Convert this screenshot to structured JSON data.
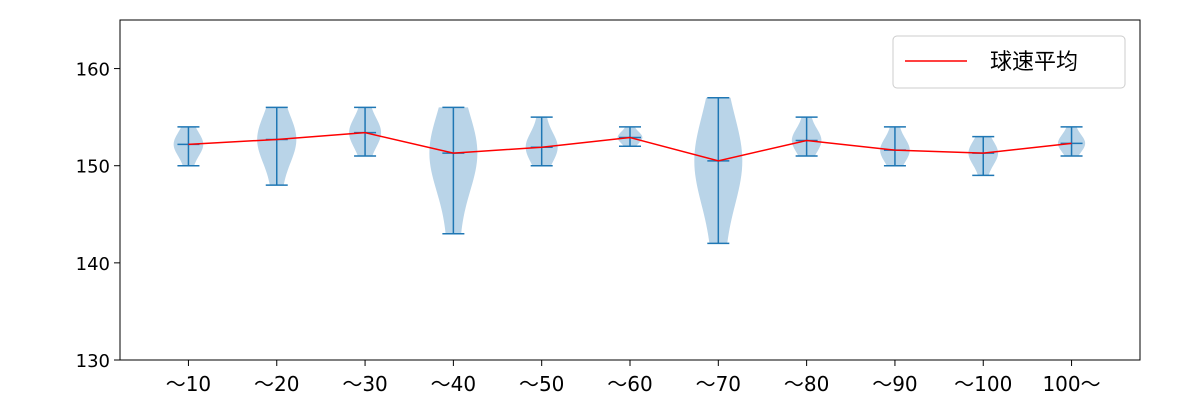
{
  "chart_data": {
    "type": "violin",
    "title": "",
    "xlabel": "",
    "ylabel": "",
    "categories": [
      "～10",
      "～20",
      "～30",
      "～40",
      "～50",
      "～60",
      "～70",
      "～80",
      "～90",
      "～100",
      "100～"
    ],
    "max": [
      154,
      156,
      156,
      156,
      155,
      154,
      157,
      155,
      154,
      153,
      154
    ],
    "min": [
      150,
      148,
      151,
      143,
      150,
      152,
      142,
      151,
      150,
      149,
      151
    ],
    "mean": [
      152.2,
      152.7,
      153.4,
      151.3,
      151.9,
      152.9,
      150.5,
      152.6,
      151.6,
      151.3,
      152.3
    ],
    "ylim": [
      130,
      165
    ],
    "yticks": [
      130,
      140,
      150,
      160
    ],
    "legend": {
      "label": "球速平均",
      "position": "top-right"
    },
    "colors": {
      "violin": "#b9d4e8",
      "whisker": "#1f77b4",
      "mean_line": "#ff0000"
    }
  }
}
